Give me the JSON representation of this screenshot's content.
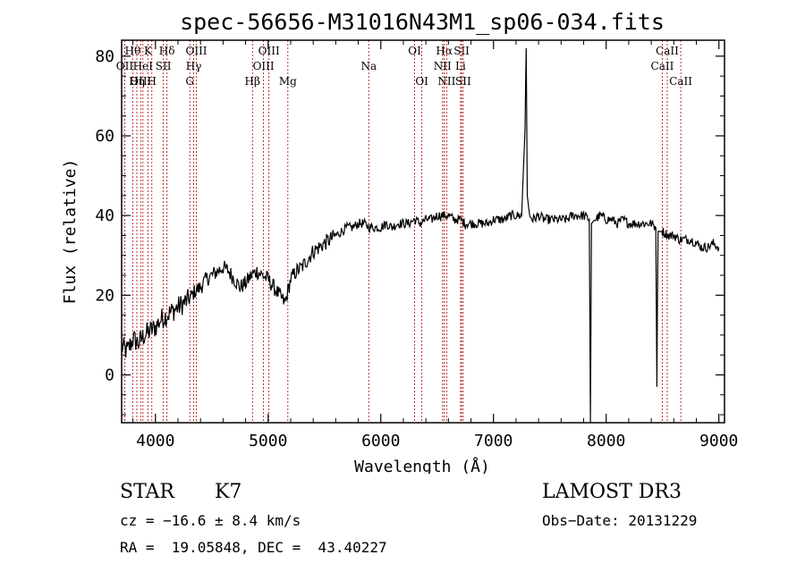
{
  "chart_data": {
    "type": "line",
    "title": "spec-56656-M31016N43M1_sp06-034.fits",
    "xlabel": "Wavelength (Å)",
    "ylabel": "Flux (relative)",
    "xlim": [
      3700,
      9050
    ],
    "ylim": [
      -12,
      84
    ],
    "xticks": [
      4000,
      5000,
      6000,
      7000,
      8000,
      9000
    ],
    "yticks": [
      0,
      20,
      40,
      60,
      80
    ],
    "series": [
      {
        "name": "flux",
        "x": [
          3700,
          3750,
          3800,
          3850,
          3900,
          3950,
          4000,
          4050,
          4100,
          4150,
          4200,
          4250,
          4300,
          4350,
          4400,
          4450,
          4500,
          4550,
          4600,
          4650,
          4700,
          4750,
          4800,
          4850,
          4900,
          4950,
          5000,
          5050,
          5100,
          5150,
          5200,
          5250,
          5300,
          5350,
          5400,
          5450,
          5500,
          5550,
          5600,
          5650,
          5700,
          5750,
          5800,
          5850,
          5900,
          5950,
          6000,
          6050,
          6100,
          6150,
          6200,
          6250,
          6300,
          6350,
          6400,
          6450,
          6500,
          6550,
          6600,
          6650,
          6700,
          6750,
          6800,
          6850,
          6900,
          6950,
          7000,
          7050,
          7100,
          7150,
          7200,
          7250,
          7280,
          7290,
          7300,
          7320,
          7350,
          7400,
          7450,
          7500,
          7550,
          7600,
          7650,
          7700,
          7750,
          7800,
          7850,
          7860,
          7870,
          7900,
          7950,
          8000,
          8050,
          8100,
          8150,
          8200,
          8250,
          8300,
          8350,
          8400,
          8440,
          8450,
          8460,
          8500,
          8550,
          8600,
          8650,
          8700,
          8750,
          8800,
          8850,
          8900,
          8950,
          9000
        ],
        "y": [
          7,
          6,
          9,
          8,
          10,
          11,
          12,
          14,
          15,
          16,
          17,
          18,
          19,
          21,
          22,
          24,
          25,
          26,
          27,
          26,
          24,
          22,
          23,
          25,
          26,
          25,
          24,
          22,
          20,
          18,
          24,
          26,
          27,
          29,
          31,
          32,
          33,
          34,
          35,
          36,
          37,
          37,
          38,
          38,
          37,
          37,
          37,
          38,
          37,
          38,
          38,
          38,
          39,
          38,
          39,
          39,
          40,
          40,
          40,
          39,
          39,
          38,
          38,
          38,
          38,
          38,
          39,
          39,
          39,
          40,
          40,
          40,
          62,
          82,
          45,
          40,
          39,
          40,
          39,
          39,
          39,
          39,
          39,
          40,
          40,
          40,
          39,
          -12,
          38,
          39,
          40,
          39,
          39,
          38,
          39,
          38,
          38,
          38,
          38,
          38,
          37,
          -3,
          36,
          36,
          35,
          35,
          34,
          34,
          34,
          33,
          32,
          32,
          33,
          32
        ]
      }
    ],
    "spectral_lines": [
      {
        "name": "Hθ",
        "wavelength": 3798,
        "row": 1
      },
      {
        "name": "OII",
        "wavelength": 3727,
        "row": 2
      },
      {
        "name": "OIII",
        "wavelength": 3869,
        "row": 3
      },
      {
        "name": "K",
        "wavelength": 3934,
        "row": 1
      },
      {
        "name": "HeI",
        "wavelength": 3889,
        "row": 2
      },
      {
        "name": "Hη",
        "wavelength": 3835,
        "row": 3
      },
      {
        "name": "H",
        "wavelength": 3968,
        "row": 3
      },
      {
        "name": "SII",
        "wavelength": 4070,
        "row": 2
      },
      {
        "name": "Hδ",
        "wavelength": 4102,
        "row": 1
      },
      {
        "name": "OIII",
        "wavelength": 4363,
        "row": 1
      },
      {
        "name": "Hγ",
        "wavelength": 4340,
        "row": 2
      },
      {
        "name": "G",
        "wavelength": 4305,
        "row": 3
      },
      {
        "name": "OIII",
        "wavelength": 5007,
        "row": 1
      },
      {
        "name": "OIII",
        "wavelength": 4959,
        "row": 2
      },
      {
        "name": "Hβ",
        "wavelength": 4861,
        "row": 3
      },
      {
        "name": "Mg",
        "wavelength": 5175,
        "row": 3
      },
      {
        "name": "Na",
        "wavelength": 5893,
        "row": 2
      },
      {
        "name": "OI",
        "wavelength": 6300,
        "row": 1
      },
      {
        "name": "OI",
        "wavelength": 6364,
        "row": 3
      },
      {
        "name": "Hα",
        "wavelength": 6563,
        "row": 1
      },
      {
        "name": "NII",
        "wavelength": 6548,
        "row": 2
      },
      {
        "name": "NII",
        "wavelength": 6584,
        "row": 3
      },
      {
        "name": "SII",
        "wavelength": 6717,
        "row": 1
      },
      {
        "name": "Li",
        "wavelength": 6708,
        "row": 2
      },
      {
        "name": "SII",
        "wavelength": 6731,
        "row": 3
      },
      {
        "name": "CaII",
        "wavelength": 8542,
        "row": 1
      },
      {
        "name": "CaII",
        "wavelength": 8498,
        "row": 2
      },
      {
        "name": "CaII",
        "wavelength": 8662,
        "row": 3
      }
    ]
  },
  "info": {
    "object_type": "STAR",
    "subclass": "K7",
    "survey": "LAMOST DR3",
    "cz": "cz = −16.6 ± 8.4 km/s",
    "obs_date": "Obs−Date: 20131229",
    "radec": "RA =  19.05848, DEC =  43.40227"
  },
  "colors": {
    "line_marker": "#b00000",
    "spectrum": "#000000",
    "axis": "#000000"
  }
}
